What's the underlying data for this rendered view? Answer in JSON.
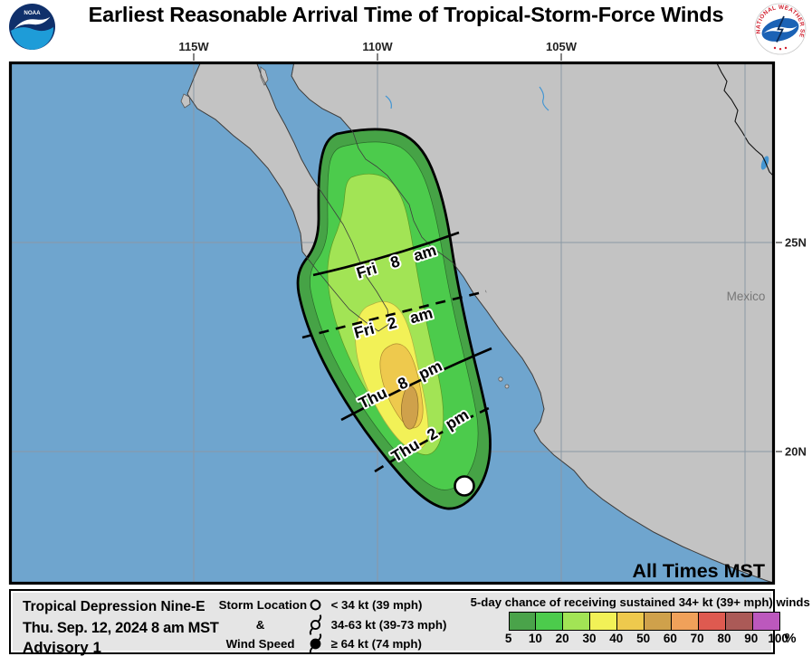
{
  "header": {
    "title": "Earliest Reasonable Arrival Time of Tropical-Storm-Force Winds",
    "noaa_logo_text": "NOAA",
    "nws_logo_text": "NATIONAL WEATHER SERVICE"
  },
  "map": {
    "x_axis_labels": [
      "115W",
      "110W",
      "105W"
    ],
    "y_axis_labels": [
      "25N",
      "20N"
    ],
    "country_label": "Mexico",
    "time_note": "All Times MST",
    "arrival_lines": [
      {
        "label": "Fri 8 am",
        "style": "solid"
      },
      {
        "label": "Fri 2 am",
        "style": "dashed"
      },
      {
        "label": "Thu 8 pm",
        "style": "solid"
      },
      {
        "label": "Thu 2 pm",
        "style": "dashed"
      }
    ],
    "storm_marker": "white circle (< 34 kt)"
  },
  "info_box": {
    "storm_name": "Tropical Depression Nine-E",
    "issued": "Thu. Sep. 12, 2024  8 am MST",
    "advisory": "Advisory 1"
  },
  "symbol_legend": {
    "heading": [
      "Storm Location",
      "&",
      "Wind Speed"
    ],
    "entries": [
      "< 34 kt (39 mph)",
      "34-63 kt (39-73 mph)",
      "≥ 64 kt (74 mph)"
    ]
  },
  "probability_legend": {
    "title": "5-day chance of receiving sustained 34+ kt (39+ mph) winds",
    "ticks": [
      "5",
      "10",
      "20",
      "30",
      "40",
      "50",
      "60",
      "70",
      "80",
      "90",
      "100"
    ],
    "unit": "%",
    "colors": [
      "#4AA34A",
      "#4CCB4C",
      "#A2E455",
      "#F2F157",
      "#EEC94D",
      "#CFA14B",
      "#F0A15A",
      "#DE5A50",
      "#AB5A57",
      "#BC58BD"
    ]
  },
  "colors": {
    "ocean": "#6FA5CE",
    "land": "#C3C3C3",
    "grid": "#8B98A5",
    "cone_bands": [
      "#46A346",
      "#4CCB4C",
      "#A2E455",
      "#F2F157",
      "#EEC94D",
      "#CFA14B"
    ]
  }
}
